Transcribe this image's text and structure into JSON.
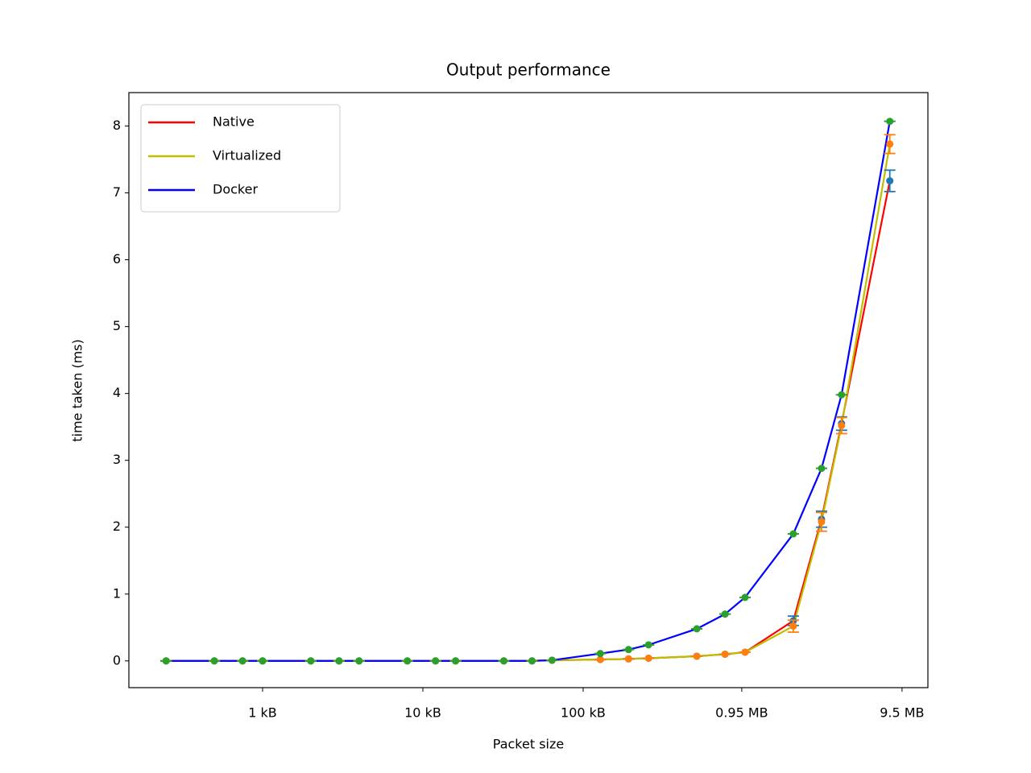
{
  "chart_data": {
    "type": "line",
    "title": "Output performance",
    "xlabel": "Packet size",
    "ylabel": "time taken (ms)",
    "x": [
      256,
      512,
      768,
      1024,
      2048,
      3072,
      4096,
      8192,
      12288,
      16384,
      32768,
      49152,
      65536,
      131072,
      196608,
      262144,
      524288,
      786432,
      1048576,
      2097152,
      3145728,
      4194304,
      8388608
    ],
    "xscale": "log",
    "xlim": [
      150,
      14500000
    ],
    "xticks": [
      {
        "value": 1024,
        "label": "1 kB"
      },
      {
        "value": 10240,
        "label": "10 kB"
      },
      {
        "value": 102400,
        "label": "100 kB"
      },
      {
        "value": 1000000,
        "label": "0.95 MB"
      },
      {
        "value": 10000000,
        "label": "9.5 MB"
      }
    ],
    "ylim": [
      -0.4,
      8.5
    ],
    "yticks": [
      0,
      1,
      2,
      3,
      4,
      5,
      6,
      7,
      8
    ],
    "legend": "upper left",
    "series": [
      {
        "name": "Native",
        "color": "#ff0000",
        "marker_color": "#1f77b4",
        "values": [
          0,
          0,
          0,
          0,
          0,
          0,
          0,
          0,
          0,
          0,
          0,
          0,
          0.01,
          0.02,
          0.03,
          0.04,
          0.07,
          0.1,
          0.13,
          0.6,
          2.12,
          3.55,
          7.18
        ],
        "errors": [
          0,
          0,
          0,
          0,
          0,
          0,
          0,
          0,
          0,
          0,
          0,
          0,
          0,
          0,
          0,
          0,
          0,
          0,
          0,
          0.07,
          0.12,
          0.1,
          0.16
        ]
      },
      {
        "name": "Virtualized",
        "color": "#bfbf00",
        "marker_color": "#ff7f0e",
        "values": [
          0,
          0,
          0,
          0,
          0,
          0,
          0,
          0,
          0,
          0,
          0,
          0,
          0.01,
          0.02,
          0.03,
          0.04,
          0.07,
          0.1,
          0.13,
          0.52,
          2.08,
          3.52,
          7.73
        ],
        "errors": [
          0,
          0,
          0,
          0,
          0,
          0,
          0,
          0,
          0,
          0,
          0,
          0,
          0,
          0,
          0,
          0,
          0,
          0,
          0,
          0.09,
          0.14,
          0.12,
          0.14
        ]
      },
      {
        "name": "Docker",
        "color": "#0000ff",
        "marker_color": "#2ca02c",
        "values": [
          0,
          0,
          0,
          0,
          0,
          0,
          0,
          0,
          0,
          0,
          0,
          0,
          0.01,
          0.11,
          0.17,
          0.24,
          0.48,
          0.7,
          0.95,
          1.9,
          2.88,
          3.98,
          8.07
        ],
        "errors": [
          0,
          0,
          0,
          0,
          0,
          0,
          0,
          0,
          0,
          0,
          0,
          0,
          0,
          0,
          0,
          0,
          0,
          0,
          0,
          0,
          0,
          0,
          0
        ]
      }
    ]
  }
}
